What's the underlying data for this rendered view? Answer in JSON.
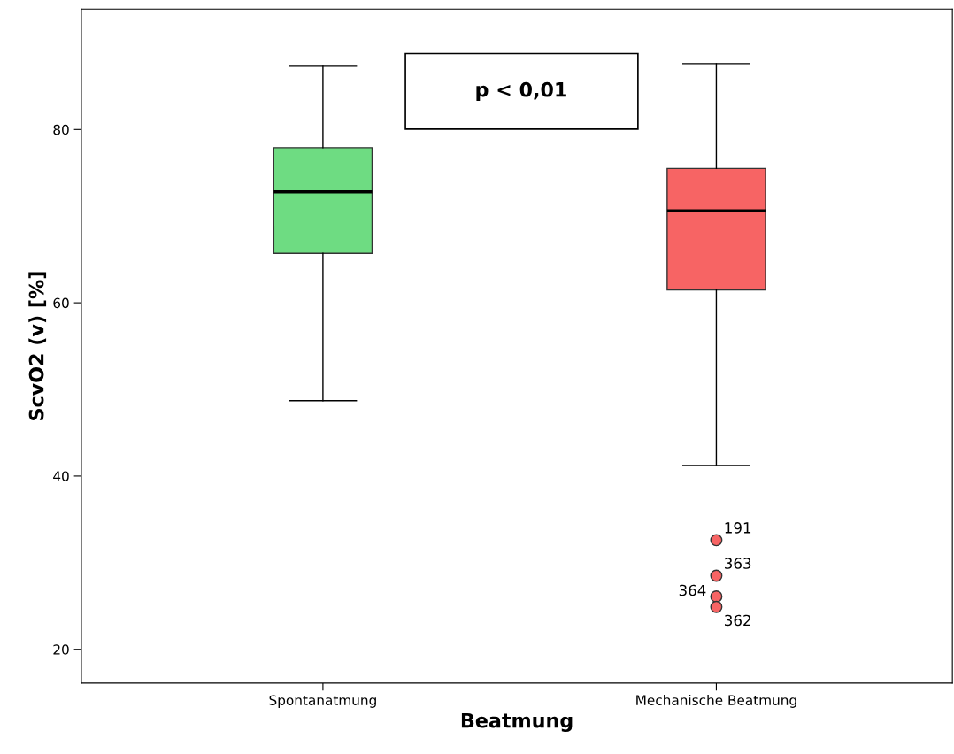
{
  "chart_data": {
    "type": "box",
    "xlabel": "Beatmung",
    "ylabel": "ScvO2 (v) [%]",
    "categories": [
      "Spontanatmung",
      "Mechanische Beatmung"
    ],
    "colors": [
      "#6edc82",
      "#f76464"
    ],
    "boxes": [
      {
        "low": 48.7,
        "q1": 65.7,
        "median": 72.8,
        "q3": 77.9,
        "high": 87.3
      },
      {
        "low": 41.2,
        "q1": 61.5,
        "median": 70.6,
        "q3": 75.5,
        "high": 87.6,
        "outliers": [
          32.6,
          28.5,
          26.1,
          24.9
        ]
      }
    ],
    "ylim": [
      16.1,
      93.9
    ],
    "yticks": [
      20,
      40,
      60,
      80
    ],
    "grid": false,
    "annotations": [
      "p < 0,01",
      "191",
      "363",
      "364",
      "362"
    ]
  }
}
